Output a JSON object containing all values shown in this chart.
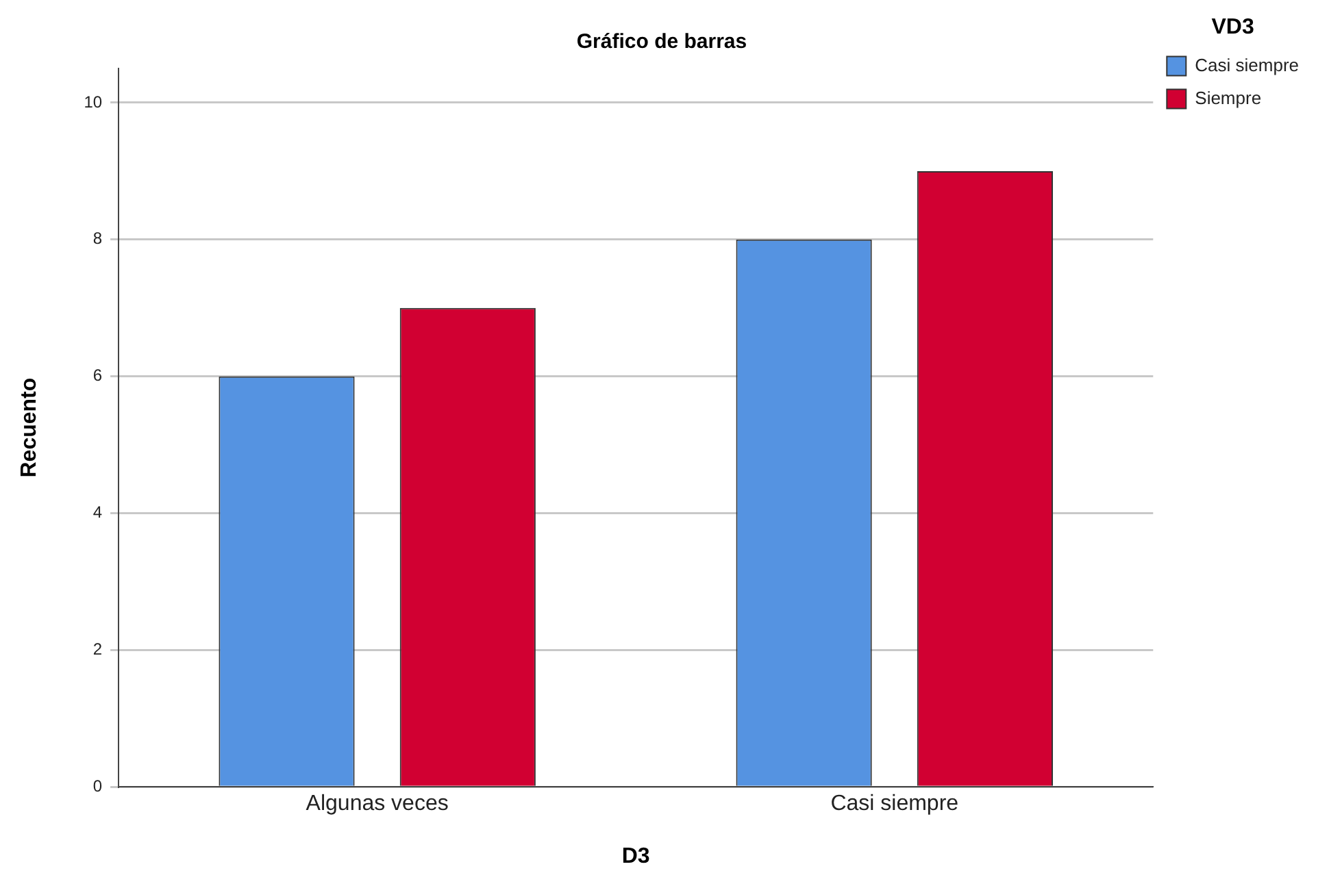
{
  "chart_data": {
    "type": "bar",
    "title": "Gráfico de barras",
    "xlabel": "D3",
    "ylabel": "Recuento",
    "legend_title": "VD3",
    "categories": [
      "Algunas veces",
      "Casi siempre"
    ],
    "series": [
      {
        "name": "Casi siempre",
        "color": "#5593e1",
        "values": [
          6,
          8
        ]
      },
      {
        "name": "Siempre",
        "color": "#d10032",
        "values": [
          7,
          9
        ]
      }
    ],
    "ylim": [
      0,
      10.5
    ],
    "yticks": [
      0,
      2,
      4,
      6,
      8,
      10
    ],
    "grid": "y",
    "legend": "top right"
  }
}
